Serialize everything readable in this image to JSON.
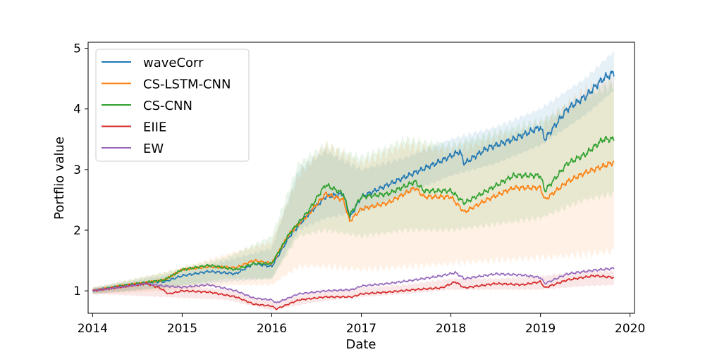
{
  "chart_data": {
    "type": "line",
    "title": "",
    "xlabel": "Date",
    "ylabel": "Portflio value",
    "xlim": [
      2013.95,
      2020.05
    ],
    "ylim": [
      0.63,
      5.1
    ],
    "x_ticks": [
      2014,
      2015,
      2016,
      2017,
      2018,
      2019,
      2020
    ],
    "y_ticks": [
      1,
      2,
      3,
      4,
      5
    ],
    "grid": false,
    "legend": "top-left",
    "series": [
      {
        "name": "waveCorr",
        "color": "#1f77b4",
        "points": [
          [
            2014.0,
            1.0
          ],
          [
            2014.3,
            1.08
          ],
          [
            2014.6,
            1.14
          ],
          [
            2014.8,
            1.15
          ],
          [
            2015.0,
            1.25
          ],
          [
            2015.3,
            1.32
          ],
          [
            2015.6,
            1.28
          ],
          [
            2015.8,
            1.45
          ],
          [
            2016.0,
            1.4
          ],
          [
            2016.2,
            1.9
          ],
          [
            2016.4,
            2.25
          ],
          [
            2016.6,
            2.55
          ],
          [
            2016.8,
            2.6
          ],
          [
            2016.87,
            2.2
          ],
          [
            2017.0,
            2.55
          ],
          [
            2017.3,
            2.75
          ],
          [
            2017.6,
            2.95
          ],
          [
            2017.9,
            3.15
          ],
          [
            2018.1,
            3.3
          ],
          [
            2018.15,
            3.1
          ],
          [
            2018.4,
            3.35
          ],
          [
            2018.7,
            3.5
          ],
          [
            2019.0,
            3.7
          ],
          [
            2019.05,
            3.5
          ],
          [
            2019.3,
            4.0
          ],
          [
            2019.5,
            4.2
          ],
          [
            2019.7,
            4.5
          ],
          [
            2019.82,
            4.6
          ]
        ],
        "band": [
          [
            2014.0,
            0.95,
            1.05
          ],
          [
            2014.8,
            1.05,
            1.25
          ],
          [
            2015.5,
            1.15,
            1.5
          ],
          [
            2016.0,
            1.2,
            1.7
          ],
          [
            2016.3,
            2.0,
            3.0
          ],
          [
            2016.6,
            2.2,
            3.3
          ],
          [
            2017.0,
            2.3,
            3.0
          ],
          [
            2017.5,
            2.6,
            3.2
          ],
          [
            2018.0,
            2.9,
            3.5
          ],
          [
            2018.5,
            3.1,
            3.7
          ],
          [
            2019.0,
            3.4,
            4.0
          ],
          [
            2019.5,
            3.9,
            4.5
          ],
          [
            2019.82,
            4.3,
            4.95
          ]
        ]
      },
      {
        "name": "CS-LSTM-CNN",
        "color": "#ff7f0e",
        "points": [
          [
            2014.0,
            1.0
          ],
          [
            2014.3,
            1.08
          ],
          [
            2014.6,
            1.14
          ],
          [
            2014.8,
            1.18
          ],
          [
            2015.0,
            1.35
          ],
          [
            2015.3,
            1.4
          ],
          [
            2015.6,
            1.38
          ],
          [
            2015.8,
            1.5
          ],
          [
            2016.0,
            1.45
          ],
          [
            2016.2,
            1.95
          ],
          [
            2016.4,
            2.25
          ],
          [
            2016.6,
            2.6
          ],
          [
            2016.8,
            2.5
          ],
          [
            2016.87,
            2.15
          ],
          [
            2017.0,
            2.35
          ],
          [
            2017.3,
            2.45
          ],
          [
            2017.6,
            2.7
          ],
          [
            2017.7,
            2.55
          ],
          [
            2018.0,
            2.55
          ],
          [
            2018.15,
            2.3
          ],
          [
            2018.4,
            2.5
          ],
          [
            2018.7,
            2.7
          ],
          [
            2019.0,
            2.7
          ],
          [
            2019.05,
            2.5
          ],
          [
            2019.3,
            2.8
          ],
          [
            2019.5,
            2.95
          ],
          [
            2019.82,
            3.12
          ]
        ],
        "band": [
          [
            2014.0,
            0.95,
            1.05
          ],
          [
            2014.8,
            1.0,
            1.3
          ],
          [
            2015.5,
            1.1,
            1.6
          ],
          [
            2016.0,
            1.1,
            1.8
          ],
          [
            2016.3,
            1.4,
            2.9
          ],
          [
            2016.6,
            1.4,
            3.4
          ],
          [
            2017.0,
            1.35,
            3.1
          ],
          [
            2017.5,
            1.4,
            3.4
          ],
          [
            2018.0,
            1.45,
            3.3
          ],
          [
            2018.5,
            1.5,
            3.5
          ],
          [
            2019.0,
            1.55,
            3.7
          ],
          [
            2019.5,
            1.6,
            4.3
          ],
          [
            2019.82,
            1.65,
            4.55
          ]
        ]
      },
      {
        "name": "CS-CNN",
        "color": "#2ca02c",
        "points": [
          [
            2014.0,
            1.0
          ],
          [
            2014.3,
            1.08
          ],
          [
            2014.6,
            1.14
          ],
          [
            2014.8,
            1.18
          ],
          [
            2015.0,
            1.35
          ],
          [
            2015.3,
            1.42
          ],
          [
            2015.6,
            1.35
          ],
          [
            2015.8,
            1.45
          ],
          [
            2016.0,
            1.45
          ],
          [
            2016.2,
            1.95
          ],
          [
            2016.4,
            2.3
          ],
          [
            2016.6,
            2.75
          ],
          [
            2016.8,
            2.6
          ],
          [
            2016.87,
            2.25
          ],
          [
            2017.0,
            2.55
          ],
          [
            2017.3,
            2.6
          ],
          [
            2017.6,
            2.8
          ],
          [
            2017.7,
            2.65
          ],
          [
            2018.0,
            2.65
          ],
          [
            2018.15,
            2.45
          ],
          [
            2018.4,
            2.65
          ],
          [
            2018.7,
            2.9
          ],
          [
            2019.0,
            2.9
          ],
          [
            2019.05,
            2.65
          ],
          [
            2019.3,
            3.1
          ],
          [
            2019.5,
            3.25
          ],
          [
            2019.7,
            3.5
          ],
          [
            2019.82,
            3.5
          ]
        ],
        "band": [
          [
            2014.0,
            0.95,
            1.05
          ],
          [
            2014.8,
            1.05,
            1.3
          ],
          [
            2015.5,
            1.2,
            1.55
          ],
          [
            2016.0,
            1.2,
            1.9
          ],
          [
            2016.3,
            1.9,
            3.1
          ],
          [
            2016.6,
            2.0,
            3.4
          ],
          [
            2017.0,
            1.9,
            3.2
          ],
          [
            2017.5,
            2.0,
            3.5
          ],
          [
            2018.0,
            2.0,
            3.4
          ],
          [
            2018.5,
            2.1,
            3.6
          ],
          [
            2019.0,
            2.2,
            3.8
          ],
          [
            2019.5,
            2.5,
            4.2
          ],
          [
            2019.82,
            2.6,
            4.4
          ]
        ]
      },
      {
        "name": "EIIE",
        "color": "#d62728",
        "points": [
          [
            2014.0,
            1.0
          ],
          [
            2014.3,
            1.06
          ],
          [
            2014.6,
            1.12
          ],
          [
            2014.75,
            1.05
          ],
          [
            2014.85,
            0.95
          ],
          [
            2015.0,
            1.0
          ],
          [
            2015.3,
            0.98
          ],
          [
            2015.6,
            0.9
          ],
          [
            2015.8,
            0.78
          ],
          [
            2016.0,
            0.75
          ],
          [
            2016.05,
            0.7
          ],
          [
            2016.3,
            0.85
          ],
          [
            2016.6,
            0.9
          ],
          [
            2016.9,
            0.9
          ],
          [
            2017.0,
            0.95
          ],
          [
            2017.3,
            0.98
          ],
          [
            2017.6,
            1.02
          ],
          [
            2017.9,
            1.05
          ],
          [
            2018.05,
            1.15
          ],
          [
            2018.15,
            1.05
          ],
          [
            2018.5,
            1.12
          ],
          [
            2018.8,
            1.1
          ],
          [
            2019.0,
            1.15
          ],
          [
            2019.05,
            1.05
          ],
          [
            2019.3,
            1.18
          ],
          [
            2019.6,
            1.25
          ],
          [
            2019.82,
            1.22
          ]
        ],
        "band": [
          [
            2014.0,
            0.95,
            1.05
          ],
          [
            2014.8,
            0.9,
            1.1
          ],
          [
            2015.5,
            0.85,
            1.02
          ],
          [
            2016.0,
            0.68,
            0.82
          ],
          [
            2016.5,
            0.82,
            0.98
          ],
          [
            2017.0,
            0.9,
            1.05
          ],
          [
            2017.5,
            0.95,
            1.1
          ],
          [
            2018.0,
            1.02,
            1.2
          ],
          [
            2018.5,
            1.02,
            1.2
          ],
          [
            2019.0,
            1.02,
            1.24
          ],
          [
            2019.5,
            1.08,
            1.32
          ],
          [
            2019.82,
            1.1,
            1.32
          ]
        ]
      },
      {
        "name": "EW",
        "color": "#9467bd",
        "points": [
          [
            2014.0,
            1.0
          ],
          [
            2014.3,
            1.06
          ],
          [
            2014.6,
            1.12
          ],
          [
            2014.8,
            1.08
          ],
          [
            2015.0,
            1.06
          ],
          [
            2015.3,
            1.1
          ],
          [
            2015.6,
            1.0
          ],
          [
            2015.8,
            0.88
          ],
          [
            2016.0,
            0.85
          ],
          [
            2016.05,
            0.8
          ],
          [
            2016.3,
            0.95
          ],
          [
            2016.6,
            1.0
          ],
          [
            2016.9,
            1.02
          ],
          [
            2017.0,
            1.08
          ],
          [
            2017.3,
            1.12
          ],
          [
            2017.6,
            1.18
          ],
          [
            2017.9,
            1.25
          ],
          [
            2018.05,
            1.3
          ],
          [
            2018.15,
            1.2
          ],
          [
            2018.5,
            1.28
          ],
          [
            2018.8,
            1.26
          ],
          [
            2019.0,
            1.22
          ],
          [
            2019.05,
            1.12
          ],
          [
            2019.3,
            1.28
          ],
          [
            2019.6,
            1.34
          ],
          [
            2019.82,
            1.37
          ]
        ]
      }
    ]
  }
}
